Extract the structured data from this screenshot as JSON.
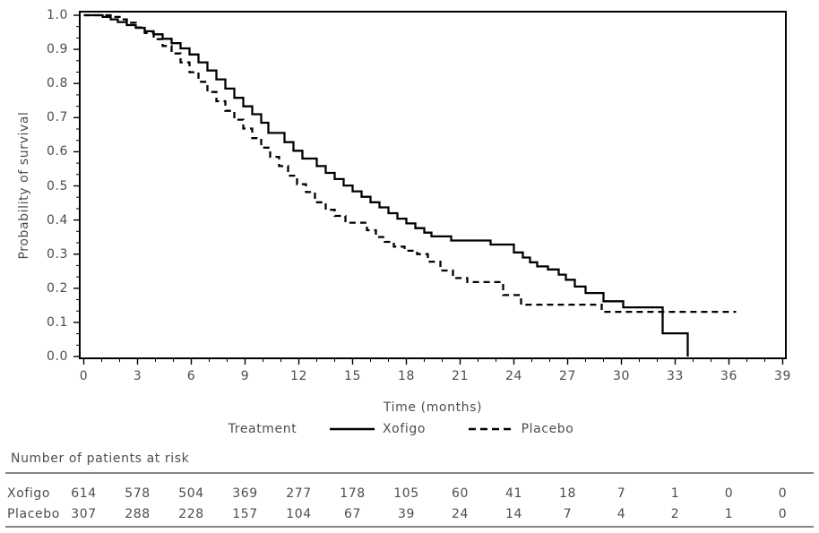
{
  "colors": {
    "curve": "#000000",
    "axis": "#000000",
    "text": "#4d4d4d",
    "rule": "#3c3c3c",
    "background": "#ffffff"
  },
  "chart_data": {
    "type": "line",
    "subtype": "kaplan-meier-step",
    "title": "",
    "xlabel": "Time (months)",
    "ylabel": "Probability of survival",
    "xlim": [
      0,
      39
    ],
    "ylim": [
      0.0,
      1.0
    ],
    "grid": false,
    "x_major_ticks": [
      0,
      3,
      6,
      9,
      12,
      15,
      18,
      21,
      24,
      27,
      30,
      33,
      36,
      39
    ],
    "x_minor_step": 1,
    "y_major_tick_labels": [
      "1.0",
      "0.9",
      "0.8",
      "0.7",
      "0.6",
      "0.5",
      "0.4",
      "0.3",
      "0.2",
      "0.1",
      "0.0"
    ],
    "y_minors_between_majors": 2,
    "legend": {
      "title": "Treatment",
      "position": "bottom"
    },
    "series": [
      {
        "name": "Xofigo",
        "line_style": "solid",
        "color": "#000000",
        "start": [
          0,
          1.0
        ],
        "end_time": 33.7,
        "drops": [
          [
            1.05,
            0.995
          ],
          [
            1.5,
            0.988
          ],
          [
            1.9,
            0.98
          ],
          [
            2.4,
            0.971
          ],
          [
            2.9,
            0.963
          ],
          [
            3.4,
            0.953
          ],
          [
            3.9,
            0.944
          ],
          [
            4.4,
            0.931
          ],
          [
            4.9,
            0.918
          ],
          [
            5.4,
            0.903
          ],
          [
            5.9,
            0.885
          ],
          [
            6.4,
            0.862
          ],
          [
            6.9,
            0.838
          ],
          [
            7.4,
            0.812
          ],
          [
            7.9,
            0.785
          ],
          [
            8.4,
            0.758
          ],
          [
            8.9,
            0.733
          ],
          [
            9.4,
            0.71
          ],
          [
            9.9,
            0.685
          ],
          [
            10.3,
            0.655
          ],
          [
            11.2,
            0.628
          ],
          [
            11.7,
            0.603
          ],
          [
            12.2,
            0.58
          ],
          [
            13.0,
            0.558
          ],
          [
            13.5,
            0.538
          ],
          [
            14.0,
            0.52
          ],
          [
            14.5,
            0.501
          ],
          [
            15.0,
            0.484
          ],
          [
            15.5,
            0.468
          ],
          [
            16.0,
            0.452
          ],
          [
            16.5,
            0.437
          ],
          [
            17.0,
            0.42
          ],
          [
            17.5,
            0.404
          ],
          [
            18.0,
            0.39
          ],
          [
            18.5,
            0.376
          ],
          [
            19.0,
            0.363
          ],
          [
            19.4,
            0.352
          ],
          [
            20.5,
            0.34
          ],
          [
            22.7,
            0.328
          ],
          [
            24.0,
            0.305
          ],
          [
            24.5,
            0.29
          ],
          [
            24.9,
            0.276
          ],
          [
            25.3,
            0.264
          ],
          [
            25.9,
            0.255
          ],
          [
            26.5,
            0.24
          ],
          [
            26.9,
            0.225
          ],
          [
            27.4,
            0.205
          ],
          [
            28.0,
            0.186
          ],
          [
            29.0,
            0.162
          ],
          [
            30.1,
            0.144
          ],
          [
            32.3,
            0.068
          ],
          [
            33.7,
            0.0
          ]
        ]
      },
      {
        "name": "Placebo",
        "line_style": "dashed",
        "color": "#000000",
        "start": [
          0,
          1.0
        ],
        "end_time": 36.4,
        "drops": [
          [
            1.5,
            0.995
          ],
          [
            2.0,
            0.988
          ],
          [
            2.4,
            0.978
          ],
          [
            2.9,
            0.964
          ],
          [
            3.4,
            0.948
          ],
          [
            3.9,
            0.93
          ],
          [
            4.4,
            0.91
          ],
          [
            4.9,
            0.888
          ],
          [
            5.4,
            0.862
          ],
          [
            5.9,
            0.833
          ],
          [
            6.4,
            0.805
          ],
          [
            6.9,
            0.775
          ],
          [
            7.4,
            0.748
          ],
          [
            7.9,
            0.72
          ],
          [
            8.4,
            0.694
          ],
          [
            8.9,
            0.668
          ],
          [
            9.4,
            0.64
          ],
          [
            9.9,
            0.612
          ],
          [
            10.4,
            0.585
          ],
          [
            10.9,
            0.558
          ],
          [
            11.4,
            0.53
          ],
          [
            11.9,
            0.505
          ],
          [
            12.4,
            0.482
          ],
          [
            12.9,
            0.452
          ],
          [
            13.5,
            0.43
          ],
          [
            14.0,
            0.412
          ],
          [
            14.6,
            0.392
          ],
          [
            15.8,
            0.37
          ],
          [
            16.3,
            0.35
          ],
          [
            16.8,
            0.336
          ],
          [
            17.3,
            0.322
          ],
          [
            17.9,
            0.31
          ],
          [
            18.6,
            0.3
          ],
          [
            19.2,
            0.278
          ],
          [
            19.9,
            0.252
          ],
          [
            20.6,
            0.23
          ],
          [
            21.4,
            0.218
          ],
          [
            23.4,
            0.18
          ],
          [
            24.4,
            0.152
          ],
          [
            28.9,
            0.131
          ]
        ]
      }
    ],
    "risk_table": {
      "title": "Number of patients at risk",
      "times": [
        0,
        3,
        6,
        9,
        12,
        15,
        18,
        21,
        24,
        27,
        30,
        33,
        36,
        39
      ],
      "rows": [
        {
          "label": "Xofigo",
          "values": [
            614,
            578,
            504,
            369,
            277,
            178,
            105,
            60,
            41,
            18,
            7,
            1,
            0,
            0
          ]
        },
        {
          "label": "Placebo",
          "values": [
            307,
            288,
            228,
            157,
            104,
            67,
            39,
            24,
            14,
            7,
            4,
            2,
            1,
            0
          ]
        }
      ]
    }
  }
}
